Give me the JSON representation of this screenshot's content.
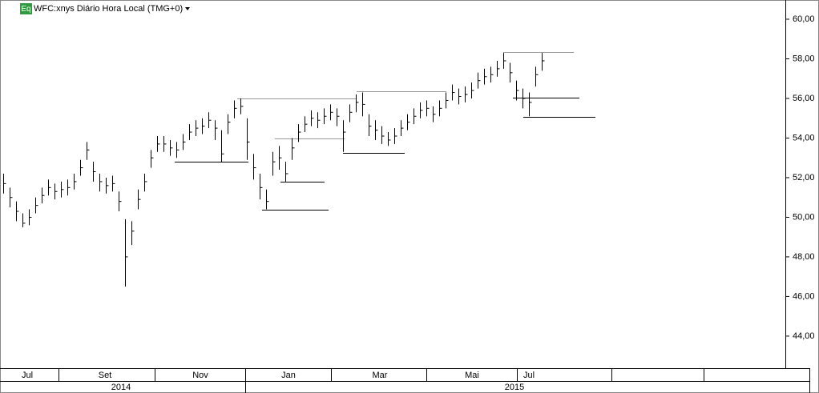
{
  "chart_data": {
    "type": "ohlc",
    "badge": "Eq",
    "title": "WFC:xnys Diário Hora Local (TMG+0)",
    "months": [
      "Jul",
      "Set",
      "Nov",
      "Jan",
      "Mar",
      "Mai",
      "Jul"
    ],
    "years": [
      "2014",
      "2015"
    ],
    "ylim": [
      42.38,
      60.97
    ],
    "yticks": [
      {
        "value": 44,
        "label": "44,00"
      },
      {
        "value": 46,
        "label": "46,00"
      },
      {
        "value": 48,
        "label": "48,00"
      },
      {
        "value": 50,
        "label": "50,00"
      },
      {
        "value": 52,
        "label": "52,00"
      },
      {
        "value": 54,
        "label": "54,00"
      },
      {
        "value": 56,
        "label": "56,00"
      },
      {
        "value": 58,
        "label": "58,00"
      },
      {
        "value": 60,
        "label": "60,00"
      }
    ],
    "color": "#000000",
    "high": [
      52.2,
      51.5,
      50.8,
      50.2,
      50.4,
      51.0,
      51.5,
      51.9,
      51.7,
      51.8,
      51.9,
      52.2,
      52.9,
      53.8,
      52.8,
      52.2,
      52.0,
      52.1,
      51.3,
      49.9,
      49.8,
      51.4,
      52.2,
      53.4,
      54.1,
      54.1,
      53.9,
      53.8,
      54.2,
      54.7,
      54.9,
      55.0,
      55.3,
      54.9,
      54.4,
      55.2,
      55.9,
      56.0,
      55.0,
      53.2,
      52.2,
      51.4,
      53.3,
      53.6,
      52.8,
      54.0,
      54.7,
      55.1,
      55.4,
      55.3,
      55.5,
      55.7,
      55.5,
      54.9,
      55.7,
      56.2,
      56.3,
      55.2,
      54.9,
      54.6,
      54.3,
      54.5,
      54.9,
      55.2,
      55.5,
      55.8,
      55.9,
      55.6,
      55.9,
      56.3,
      56.7,
      56.5,
      56.6,
      56.8,
      57.3,
      57.5,
      57.6,
      57.9,
      58.3,
      57.8,
      56.9,
      56.5,
      56.3,
      57.6,
      58.3
    ],
    "low": [
      51.2,
      50.5,
      49.8,
      49.5,
      49.6,
      50.2,
      50.7,
      51.1,
      50.9,
      51.0,
      51.1,
      51.4,
      52.1,
      52.9,
      51.8,
      51.3,
      51.2,
      51.3,
      50.3,
      46.5,
      48.6,
      50.4,
      51.3,
      52.5,
      53.3,
      53.3,
      53.1,
      53.0,
      53.4,
      53.9,
      54.1,
      54.2,
      54.5,
      53.9,
      52.8,
      54.2,
      55.0,
      55.2,
      52.9,
      51.9,
      50.9,
      50.4,
      52.1,
      52.4,
      51.8,
      52.9,
      53.8,
      54.3,
      54.6,
      54.5,
      54.7,
      54.9,
      54.6,
      53.3,
      54.8,
      55.3,
      55.1,
      54.1,
      53.9,
      53.7,
      53.6,
      53.7,
      54.1,
      54.4,
      54.7,
      55.0,
      55.1,
      54.8,
      55.1,
      55.5,
      55.9,
      55.7,
      55.8,
      56.0,
      56.5,
      56.7,
      56.8,
      57.1,
      57.5,
      56.8,
      55.9,
      55.5,
      55.1,
      56.6,
      57.4
    ],
    "close": [
      51.7,
      51.0,
      50.3,
      49.7,
      50.0,
      50.6,
      51.1,
      51.5,
      51.3,
      51.4,
      51.5,
      51.8,
      52.5,
      53.4,
      52.3,
      51.8,
      51.6,
      51.7,
      50.8,
      48.0,
      49.3,
      50.9,
      51.8,
      53.0,
      53.7,
      53.7,
      53.5,
      53.4,
      53.8,
      54.3,
      54.5,
      54.6,
      54.9,
      54.5,
      53.2,
      54.8,
      55.5,
      55.6,
      53.8,
      52.5,
      51.5,
      50.8,
      52.8,
      53.0,
      52.2,
      53.5,
      54.3,
      54.7,
      55.0,
      54.9,
      55.1,
      55.3,
      55.1,
      54.3,
      55.3,
      55.8,
      55.7,
      54.6,
      54.4,
      54.1,
      53.9,
      54.1,
      54.5,
      54.8,
      55.1,
      55.4,
      55.5,
      55.2,
      55.5,
      55.9,
      56.3,
      56.1,
      56.2,
      56.4,
      56.9,
      57.1,
      57.2,
      57.5,
      57.9,
      57.3,
      56.4,
      56.0,
      55.8,
      57.2,
      57.9
    ],
    "levels": [
      {
        "value": 52.8,
        "color": "#000000"
      },
      {
        "value": 56.0,
        "color": "#999999"
      },
      {
        "value": 50.4,
        "color": "#000000"
      },
      {
        "value": 53.98,
        "color": "#999999"
      },
      {
        "value": 51.8,
        "color": "#000000"
      },
      {
        "value": 53.25,
        "color": "#000000"
      },
      {
        "value": 56.36,
        "color": "#999999"
      },
      {
        "value": 58.34,
        "color": "#999999"
      },
      {
        "value": 56.04,
        "color": "#000000"
      },
      {
        "value": 55.07,
        "color": "#000000"
      }
    ]
  }
}
